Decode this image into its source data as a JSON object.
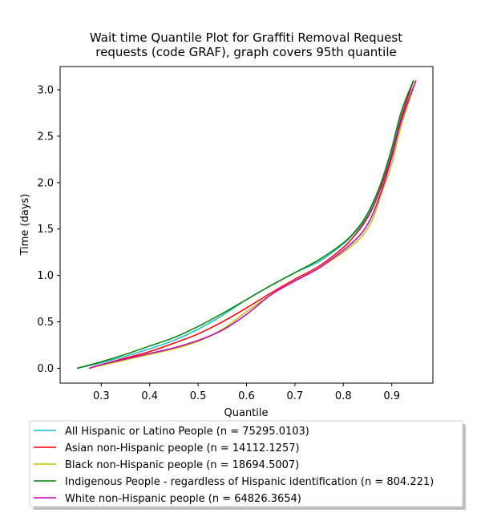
{
  "chart_data": {
    "type": "line",
    "title_lines": [
      "Wait time Quantile Plot for Graffiti Removal Request",
      "requests (code GRAF), graph covers 95th quantile"
    ],
    "xlabel": "Quantile",
    "ylabel": "Time (days)",
    "xlim": [
      0.215,
      0.985
    ],
    "ylim": [
      -0.16,
      3.25
    ],
    "x_ticks": [
      0.3,
      0.4,
      0.5,
      0.6,
      0.7,
      0.8,
      0.9
    ],
    "x_tick_labels": [
      "0.3",
      "0.4",
      "0.5",
      "0.6",
      "0.7",
      "0.8",
      "0.9"
    ],
    "y_ticks": [
      0.0,
      0.5,
      1.0,
      1.5,
      2.0,
      2.5,
      3.0
    ],
    "y_tick_labels": [
      "0.0",
      "0.5",
      "1.0",
      "1.5",
      "2.0",
      "2.5",
      "3.0"
    ],
    "grid": false,
    "legend_position": "below plot",
    "series": [
      {
        "name": "All Hispanic or Latino People (n = 75295.0103)",
        "color": "#17becf",
        "points": [
          [
            0.25,
            0.0
          ],
          [
            0.3,
            0.06
          ],
          [
            0.35,
            0.13
          ],
          [
            0.4,
            0.21
          ],
          [
            0.45,
            0.3
          ],
          [
            0.5,
            0.42
          ],
          [
            0.55,
            0.57
          ],
          [
            0.6,
            0.74
          ],
          [
            0.65,
            0.89
          ],
          [
            0.7,
            1.03
          ],
          [
            0.75,
            1.15
          ],
          [
            0.8,
            1.34
          ],
          [
            0.82,
            1.44
          ],
          [
            0.84,
            1.56
          ],
          [
            0.86,
            1.74
          ],
          [
            0.88,
            2.0
          ],
          [
            0.9,
            2.33
          ],
          [
            0.92,
            2.72
          ],
          [
            0.945,
            3.1
          ]
        ]
      },
      {
        "name": "Asian non-Hispanic people (n = 14112.1257)",
        "color": "#ff0000",
        "points": [
          [
            0.275,
            0.0
          ],
          [
            0.3,
            0.04
          ],
          [
            0.35,
            0.11
          ],
          [
            0.4,
            0.18
          ],
          [
            0.45,
            0.27
          ],
          [
            0.5,
            0.37
          ],
          [
            0.55,
            0.5
          ],
          [
            0.6,
            0.65
          ],
          [
            0.65,
            0.81
          ],
          [
            0.7,
            0.96
          ],
          [
            0.75,
            1.1
          ],
          [
            0.8,
            1.3
          ],
          [
            0.82,
            1.41
          ],
          [
            0.84,
            1.54
          ],
          [
            0.86,
            1.72
          ],
          [
            0.88,
            1.98
          ],
          [
            0.9,
            2.3
          ],
          [
            0.92,
            2.7
          ],
          [
            0.945,
            3.1
          ]
        ]
      },
      {
        "name": "Black non-Hispanic people (n = 18694.5007)",
        "color": "#bfbf00",
        "points": [
          [
            0.275,
            0.0
          ],
          [
            0.3,
            0.03
          ],
          [
            0.35,
            0.09
          ],
          [
            0.4,
            0.15
          ],
          [
            0.45,
            0.21
          ],
          [
            0.5,
            0.29
          ],
          [
            0.55,
            0.42
          ],
          [
            0.6,
            0.61
          ],
          [
            0.65,
            0.79
          ],
          [
            0.7,
            0.94
          ],
          [
            0.75,
            1.08
          ],
          [
            0.8,
            1.25
          ],
          [
            0.82,
            1.33
          ],
          [
            0.84,
            1.43
          ],
          [
            0.86,
            1.6
          ],
          [
            0.88,
            1.9
          ],
          [
            0.9,
            2.2
          ],
          [
            0.92,
            2.62
          ],
          [
            0.95,
            3.1
          ]
        ]
      },
      {
        "name": "Indigenous People - regardless of Hispanic identification (n = 804.221)",
        "color": "#008000",
        "points": [
          [
            0.25,
            0.0
          ],
          [
            0.3,
            0.07
          ],
          [
            0.35,
            0.15
          ],
          [
            0.4,
            0.24
          ],
          [
            0.45,
            0.33
          ],
          [
            0.5,
            0.45
          ],
          [
            0.55,
            0.59
          ],
          [
            0.6,
            0.74
          ],
          [
            0.65,
            0.89
          ],
          [
            0.7,
            1.03
          ],
          [
            0.75,
            1.17
          ],
          [
            0.8,
            1.35
          ],
          [
            0.82,
            1.45
          ],
          [
            0.84,
            1.58
          ],
          [
            0.86,
            1.77
          ],
          [
            0.88,
            2.03
          ],
          [
            0.9,
            2.37
          ],
          [
            0.92,
            2.77
          ],
          [
            0.945,
            3.1
          ]
        ]
      },
      {
        "name": "White non-Hispanic people (n = 64826.3654)",
        "color": "#bf00bf",
        "points": [
          [
            0.275,
            0.0
          ],
          [
            0.3,
            0.04
          ],
          [
            0.35,
            0.1
          ],
          [
            0.4,
            0.16
          ],
          [
            0.45,
            0.22
          ],
          [
            0.5,
            0.3
          ],
          [
            0.55,
            0.41
          ],
          [
            0.6,
            0.58
          ],
          [
            0.65,
            0.79
          ],
          [
            0.7,
            0.94
          ],
          [
            0.75,
            1.08
          ],
          [
            0.8,
            1.27
          ],
          [
            0.82,
            1.36
          ],
          [
            0.84,
            1.47
          ],
          [
            0.86,
            1.65
          ],
          [
            0.88,
            1.93
          ],
          [
            0.9,
            2.27
          ],
          [
            0.92,
            2.67
          ],
          [
            0.95,
            3.1
          ]
        ]
      }
    ]
  }
}
